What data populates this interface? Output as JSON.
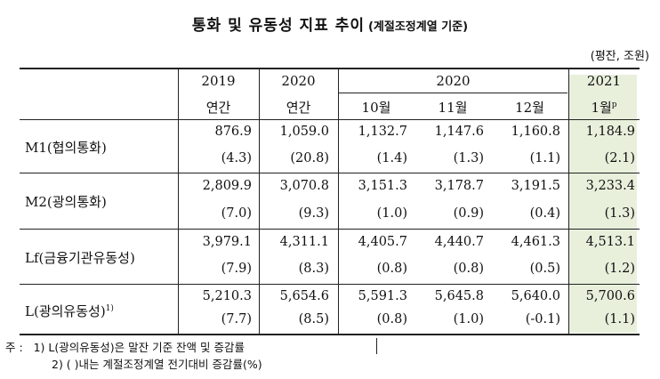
{
  "title": {
    "main": "통화 및 유동성 지표 추이",
    "sub": "(계절조정계열 기준)"
  },
  "unit": "(평잔, 조원)",
  "header": {
    "years": [
      "2019",
      "2020",
      "2020",
      "2021"
    ],
    "periods": [
      "연간",
      "연간",
      "10월",
      "11월",
      "12월",
      "1월"
    ],
    "last_sup": "p"
  },
  "rows": [
    {
      "label": "M1(협의통화)",
      "sup": "",
      "values": [
        "876.9",
        "1,059.0",
        "1,132.7",
        "1,147.6",
        "1,160.8",
        "1,184.9"
      ],
      "changes": [
        "(4.3)",
        "(20.8)",
        "(1.4)",
        "(1.3)",
        "(1.1)",
        "(2.1)"
      ]
    },
    {
      "label": "M2(광의통화)",
      "sup": "",
      "values": [
        "2,809.9",
        "3,070.8",
        "3,151.3",
        "3,178.7",
        "3,191.5",
        "3,233.4"
      ],
      "changes": [
        "(7.0)",
        "(9.3)",
        "(1.0)",
        "(0.9)",
        "(0.4)",
        "(1.3)"
      ]
    },
    {
      "label": "Lf(금융기관유동성)",
      "sup": "",
      "values": [
        "3,979.1",
        "4,311.1",
        "4,405.7",
        "4,440.7",
        "4,461.3",
        "4,513.1"
      ],
      "changes": [
        "(7.9)",
        "(8.3)",
        "(0.8)",
        "(0.8)",
        "(0.5)",
        "(1.2)"
      ]
    },
    {
      "label": "L(광의유동성)",
      "sup": "1)",
      "values": [
        "5,210.3",
        "5,654.6",
        "5,591.3",
        "5,645.8",
        "5,640.0",
        "5,700.6"
      ],
      "changes": [
        "(7.7)",
        "(8.5)",
        "(0.8)",
        "(1.0)",
        "(-0.1)",
        "(1.1)"
      ]
    }
  ],
  "notes": {
    "prefix": "주 :",
    "items": [
      "1) L(광의유동성)은 말잔 기준 잔액 및 증감률",
      "2) (   )내는 계절조정계열 전기대비 증감률(%)"
    ]
  }
}
